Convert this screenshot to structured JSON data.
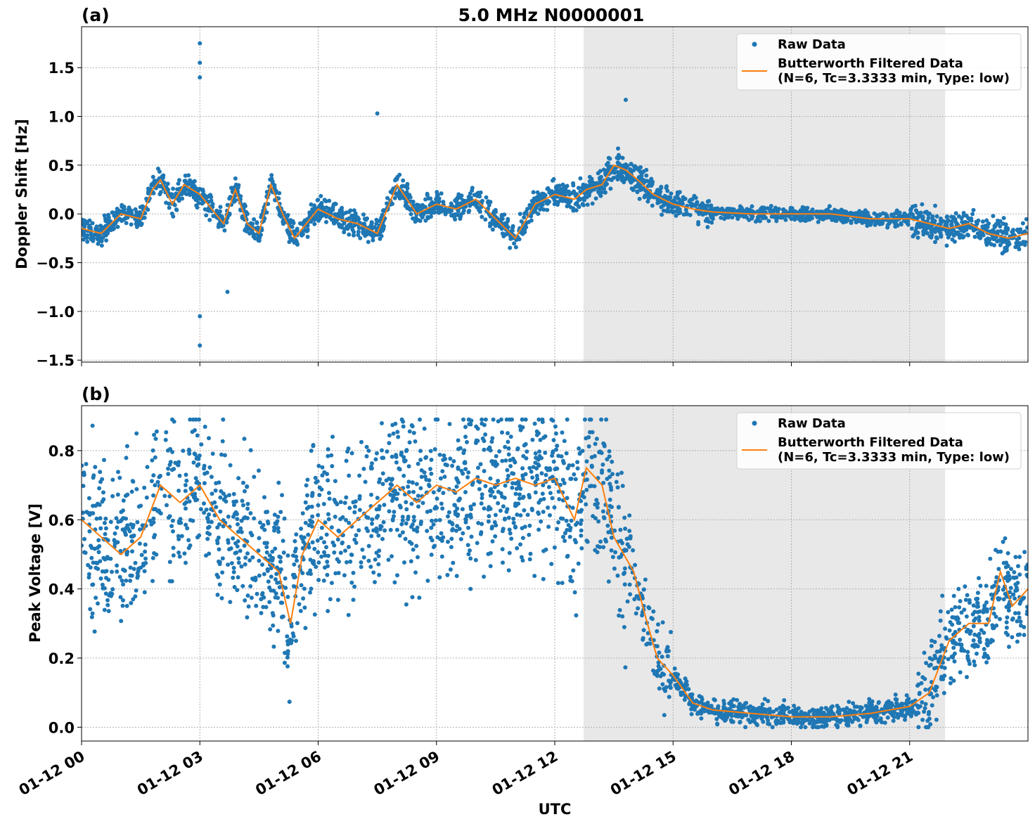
{
  "figure": {
    "title": "5.0 MHz N0000001"
  },
  "colors": {
    "raw": "#1f77b4",
    "filtered": "#ff7f0e",
    "shade": "#e8e8e8"
  },
  "chart_data": [
    {
      "panel_label": "(a)",
      "type": "scatter",
      "ylabel": "Doppler Shift [Hz]",
      "xlabel": "",
      "xlim": [
        0,
        24
      ],
      "ylim": [
        -1.52,
        1.92
      ],
      "yticks": [
        -1.5,
        -1.0,
        -0.5,
        0.0,
        0.5,
        1.0,
        1.5
      ],
      "ytick_labels": [
        "−1.5",
        "−1.0",
        "−0.5",
        "0.0",
        "0.5",
        "1.0",
        "1.5"
      ],
      "shaded_interval_hours": [
        12.73,
        21.9
      ],
      "grid": true,
      "legend_position": "top-right",
      "legend": [
        "Raw Data",
        "Butterworth Filtered Data",
        "(N=6, Tc=3.3333 min, Type: low)"
      ],
      "series": [
        {
          "name": "Raw Data",
          "kind": "scatter"
        },
        {
          "name": "Butterworth Filtered Data",
          "kind": "line",
          "x": [
            0,
            0.5,
            1,
            1.5,
            1.8,
            2,
            2.3,
            2.6,
            3,
            3.3,
            3.6,
            3.9,
            4.2,
            4.5,
            4.8,
            5.1,
            5.4,
            5.7,
            6,
            6.5,
            7,
            7.5,
            8,
            8.5,
            9,
            9.5,
            10,
            10.5,
            11,
            11.5,
            12,
            12.5,
            12.8,
            13.2,
            13.5,
            13.8,
            14.1,
            14.5,
            15,
            15.5,
            16,
            17,
            18,
            19,
            20,
            21,
            21.5,
            22,
            22.5,
            23,
            23.5,
            24
          ],
          "y": [
            -0.15,
            -0.2,
            0.0,
            -0.05,
            0.25,
            0.35,
            0.1,
            0.3,
            0.2,
            0.05,
            -0.1,
            0.25,
            -0.1,
            -0.2,
            0.3,
            0.0,
            -0.25,
            -0.1,
            0.05,
            -0.05,
            -0.1,
            -0.2,
            0.3,
            0.0,
            0.1,
            0.05,
            0.15,
            -0.05,
            -0.25,
            0.1,
            0.2,
            0.15,
            0.25,
            0.3,
            0.5,
            0.45,
            0.35,
            0.2,
            0.1,
            0.05,
            0.02,
            0.0,
            0.0,
            0.0,
            -0.05,
            -0.05,
            -0.1,
            -0.15,
            -0.1,
            -0.2,
            -0.25,
            -0.2
          ]
        }
      ]
    },
    {
      "panel_label": "(b)",
      "type": "scatter",
      "ylabel": "Peak Voltage [V]",
      "xlabel": "UTC",
      "xlim": [
        0,
        24
      ],
      "ylim": [
        -0.04,
        0.93
      ],
      "yticks": [
        0.0,
        0.2,
        0.4,
        0.6,
        0.8
      ],
      "ytick_labels": [
        "0.0",
        "0.2",
        "0.4",
        "0.6",
        "0.8"
      ],
      "xticks": [
        0,
        3,
        6,
        9,
        12,
        15,
        18,
        21
      ],
      "xtick_labels": [
        "01-12 00",
        "01-12 03",
        "01-12 06",
        "01-12 09",
        "01-12 12",
        "01-12 15",
        "01-12 18",
        "01-12 21"
      ],
      "shaded_interval_hours": [
        12.73,
        21.9
      ],
      "grid": true,
      "legend_position": "top-right",
      "legend": [
        "Raw Data",
        "Butterworth Filtered Data",
        "(N=6, Tc=3.3333 min, Type: low)"
      ],
      "series": [
        {
          "name": "Raw Data",
          "kind": "scatter"
        },
        {
          "name": "Butterworth Filtered Data",
          "kind": "line",
          "x": [
            0,
            0.5,
            1,
            1.5,
            2,
            2.5,
            3,
            3.5,
            4,
            4.5,
            5,
            5.3,
            5.6,
            6,
            6.5,
            7,
            7.5,
            8,
            8.5,
            9,
            9.5,
            10,
            10.5,
            11,
            11.5,
            12,
            12.5,
            12.8,
            13.2,
            13.5,
            14,
            14.3,
            14.6,
            15,
            15.5,
            16,
            17,
            18,
            19,
            20,
            20.5,
            21,
            21.5,
            22,
            22.5,
            23,
            23.3,
            23.6,
            24
          ],
          "y": [
            0.6,
            0.55,
            0.5,
            0.55,
            0.7,
            0.65,
            0.7,
            0.6,
            0.55,
            0.5,
            0.45,
            0.3,
            0.5,
            0.6,
            0.55,
            0.6,
            0.65,
            0.7,
            0.65,
            0.7,
            0.68,
            0.72,
            0.7,
            0.72,
            0.7,
            0.72,
            0.6,
            0.75,
            0.7,
            0.55,
            0.45,
            0.32,
            0.2,
            0.15,
            0.07,
            0.05,
            0.04,
            0.03,
            0.03,
            0.04,
            0.05,
            0.06,
            0.1,
            0.25,
            0.3,
            0.3,
            0.45,
            0.35,
            0.4
          ]
        }
      ]
    }
  ]
}
